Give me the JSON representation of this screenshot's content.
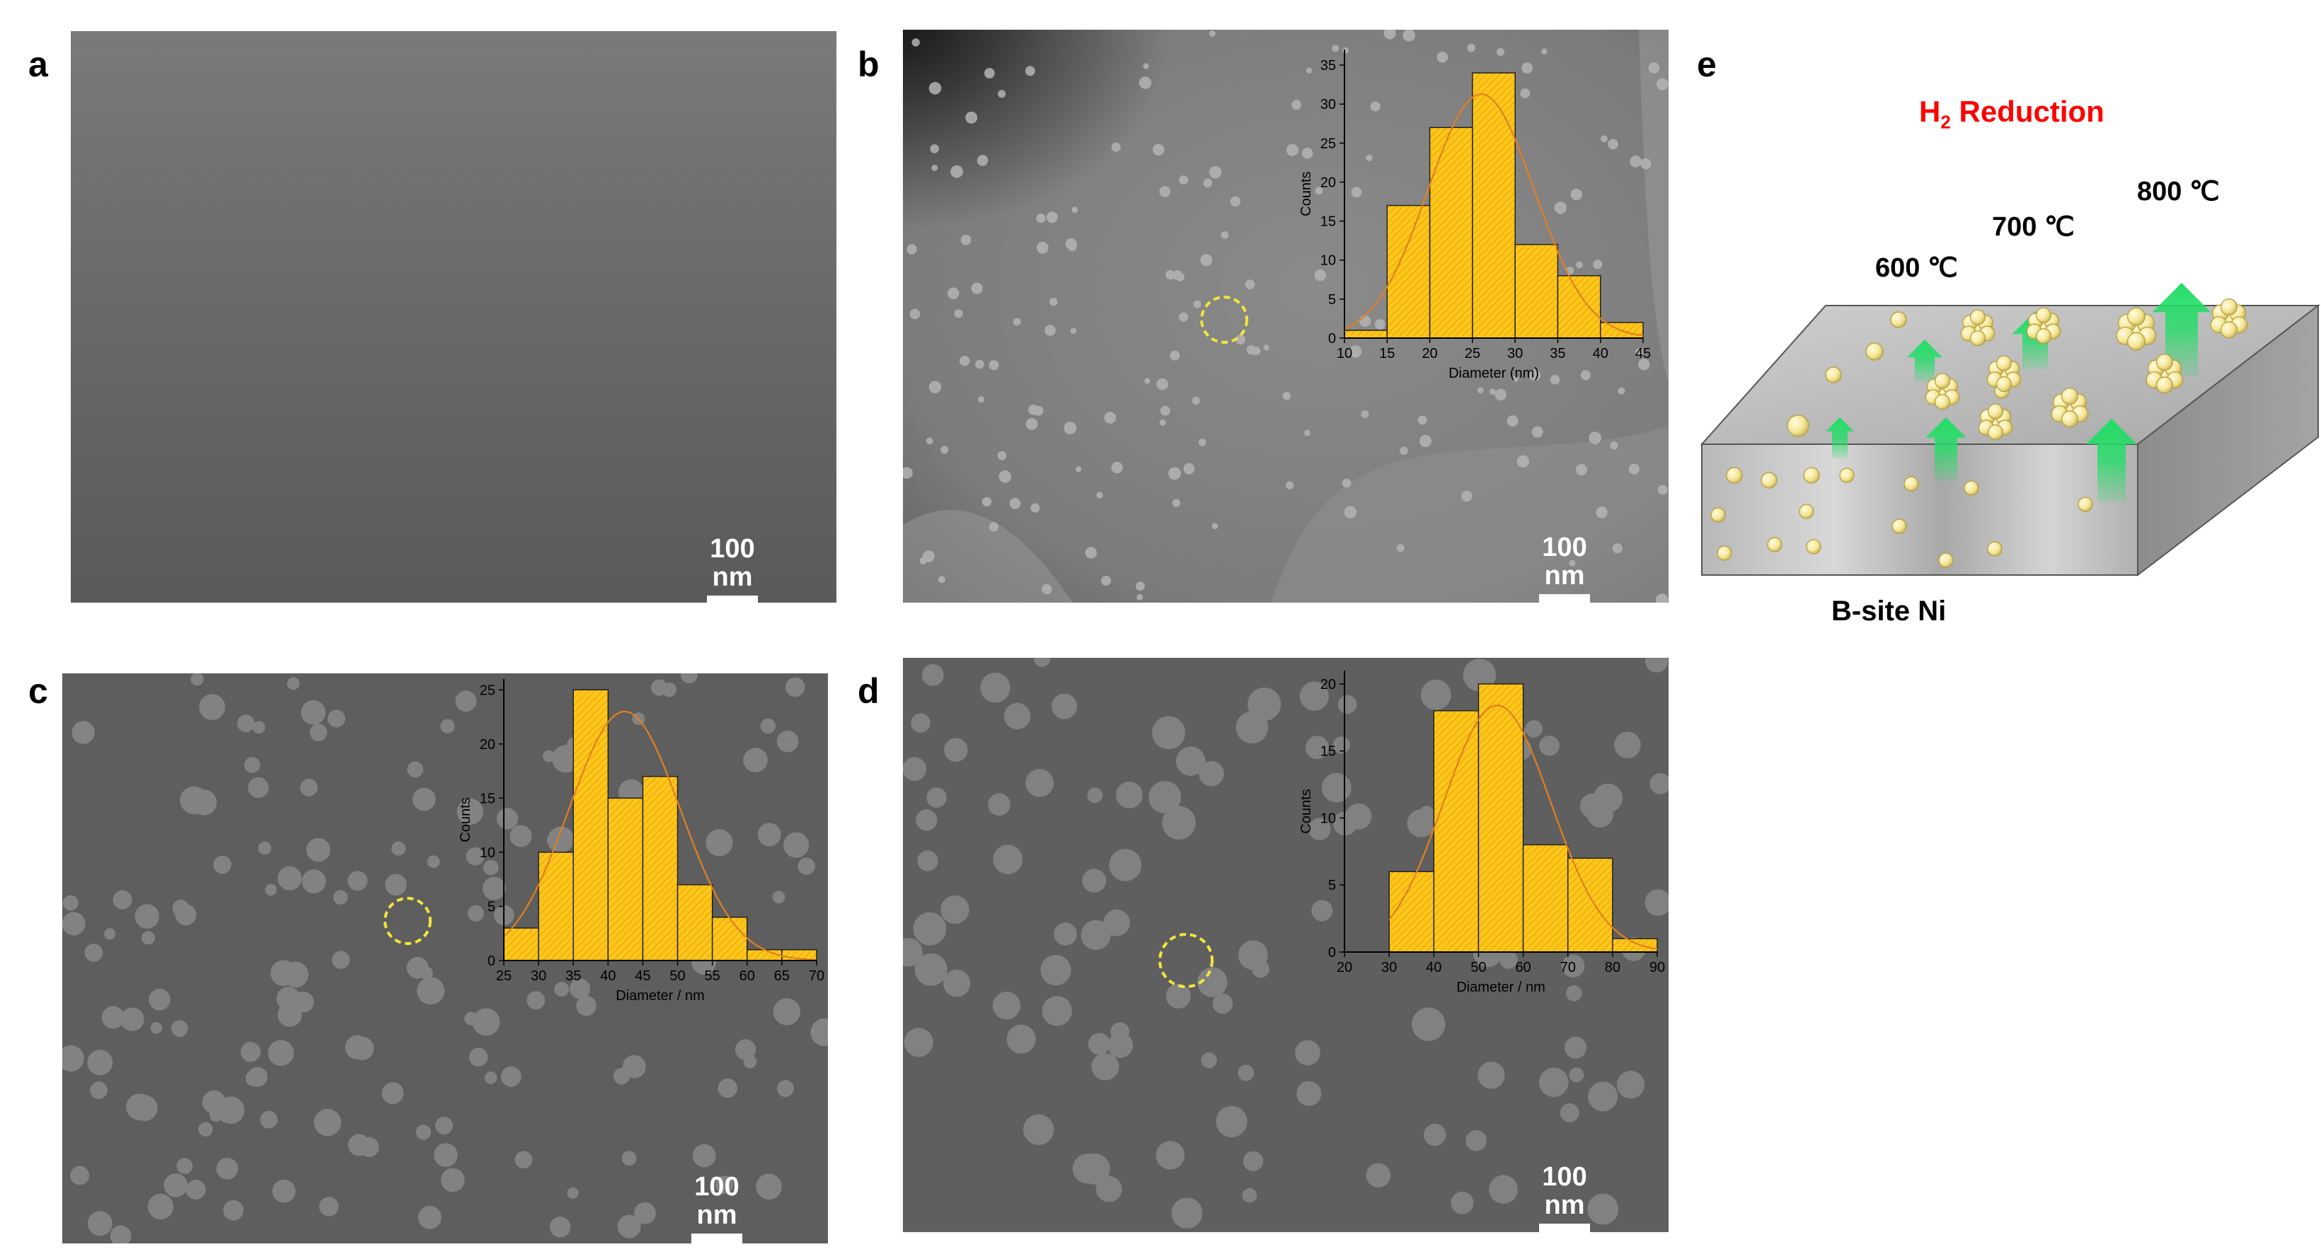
{
  "figure": {
    "panels": {
      "a": {
        "letter": "a",
        "scale_bar": "100 nm"
      },
      "b": {
        "letter": "b",
        "scale_bar": "100 nm"
      },
      "c": {
        "letter": "c",
        "scale_bar": "100 nm"
      },
      "d": {
        "letter": "d",
        "scale_bar": "100 nm"
      },
      "e": {
        "letter": "e"
      }
    },
    "schematic": {
      "title_main": "H",
      "title_sub": "2",
      "title_rest": " Reduction",
      "title_color": "#ff0000",
      "temps": [
        "600 ℃",
        "700 ℃",
        "800 ℃"
      ],
      "bottom_label": "B-site Ni",
      "arrow_color": "#22dd66",
      "particle_color": "#f5e79a"
    }
  },
  "chart_data": [
    {
      "type": "bar",
      "panel": "b",
      "xlabel": "Diameter (nm)",
      "ylabel": "Counts",
      "bin_edges": [
        10,
        15,
        20,
        25,
        30,
        35,
        40,
        45
      ],
      "values": [
        1,
        17,
        27,
        34,
        12,
        8,
        2
      ],
      "xlim": [
        10,
        45
      ],
      "ylim": [
        0,
        37
      ],
      "xticks": [
        10,
        15,
        20,
        25,
        30,
        35,
        40,
        45
      ],
      "yticks": [
        0,
        5,
        10,
        15,
        20,
        25,
        30,
        35
      ],
      "fit_curve": "gaussian",
      "bar_color": "#ffc61a",
      "curve_color": "#e08020"
    },
    {
      "type": "bar",
      "panel": "c",
      "xlabel": "Diameter / nm",
      "ylabel": "Counts",
      "bin_edges": [
        25,
        30,
        35,
        40,
        45,
        50,
        55,
        60,
        65,
        70
      ],
      "values": [
        3,
        10,
        25,
        15,
        17,
        7,
        4,
        1,
        1
      ],
      "xlim": [
        25,
        70
      ],
      "ylim": [
        0,
        26
      ],
      "xticks": [
        25,
        30,
        35,
        40,
        45,
        50,
        55,
        60,
        65,
        70
      ],
      "yticks": [
        0,
        5,
        10,
        15,
        20,
        25
      ],
      "fit_curve": "gaussian",
      "bar_color": "#ffc61a",
      "curve_color": "#e08020"
    },
    {
      "type": "bar",
      "panel": "d",
      "xlabel": "Diameter / nm",
      "ylabel": "Counts",
      "bin_edges": [
        30,
        40,
        50,
        60,
        70,
        80,
        90
      ],
      "values": [
        6,
        18,
        20,
        8,
        7,
        1
      ],
      "xlim": [
        20,
        90
      ],
      "ylim": [
        0,
        21
      ],
      "xticks": [
        20,
        30,
        40,
        50,
        60,
        70,
        80,
        90
      ],
      "yticks": [
        0,
        5,
        10,
        15,
        20
      ],
      "fit_curve": "gaussian",
      "bar_color": "#ffc61a",
      "curve_color": "#e08020"
    }
  ]
}
